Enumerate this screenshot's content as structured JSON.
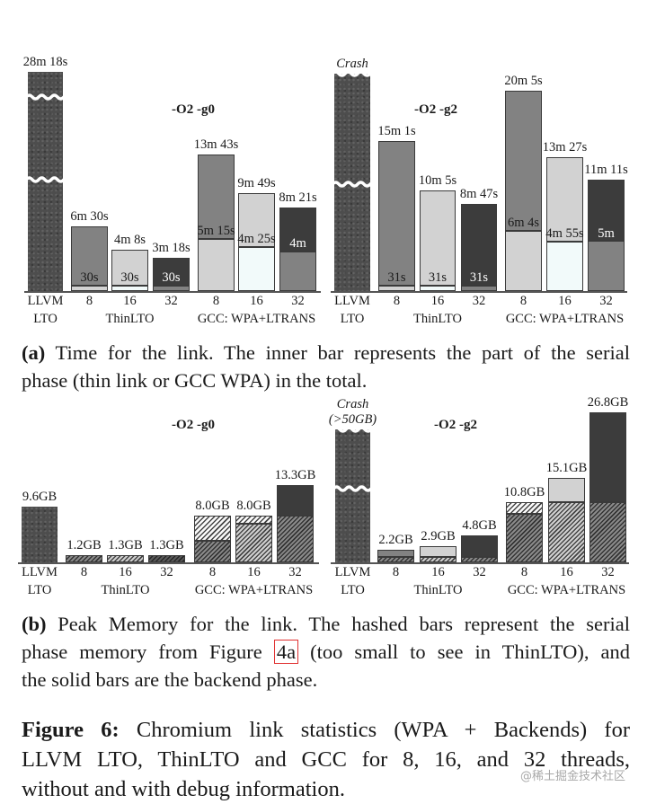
{
  "captions": {
    "a": {
      "tag": "(a)",
      "lines": [
        " Time for the link. The inner bar represents the part of the serial",
        "phase (thin link or GCC WPA) in the total."
      ]
    },
    "b": {
      "tag": "(b)",
      "line1": " Peak Memory for the link. The hashed bars represent the serial",
      "line2_pre": "phase memory from Figure ",
      "line2_ref": "4a",
      "line2_post": " (too small to see in ThinLTO), and",
      "line3": "the solid bars are the backend phase."
    },
    "figure": {
      "tag": "Figure 6:",
      "line1": " Chromium link statistics (WPA + Backends) for",
      "line2": "LLVM LTO, ThinLTO and GCC for 8, 16, and 32 threads,",
      "line3": "without and with debug information."
    }
  },
  "watermark": "@稀土掘金技术社区",
  "colors": {
    "threads_8": "#828282",
    "threads_16": "#d2d2d2",
    "threads_32": "#3c3c3c",
    "llvm": "#4d4d4d",
    "serial_highlight": "#e03030"
  },
  "chart_data": [
    {
      "type": "bar",
      "figure": "a",
      "metric": "link time",
      "unit": "seconds",
      "title": "-O2 -g0",
      "tick_labels": [
        [
          "LLVM",
          "LTO"
        ],
        [
          "8"
        ],
        [
          "16"
        ],
        [
          "32"
        ],
        [
          "8"
        ],
        [
          "16"
        ],
        [
          "32"
        ]
      ],
      "group_labels": [
        "ThinLTO",
        "GCC: WPA+LTRANS"
      ],
      "bars": [
        {
          "category": "LLVM LTO",
          "total": 1698,
          "total_label": "28m 18s",
          "broken": true,
          "segments": [
            {
              "from": 0,
              "to": 1698,
              "style": "s-llvm"
            }
          ]
        },
        {
          "category": "ThinLTO 8",
          "total": 390,
          "total_label": "6m 30s",
          "serial": 30,
          "inner_label": "30s",
          "inner_color": "#1a1a1a",
          "segments": [
            {
              "from": 0,
              "to": 30,
              "style": "s-light"
            },
            {
              "from": 30,
              "to": 390,
              "style": "s-mid"
            }
          ]
        },
        {
          "category": "ThinLTO 16",
          "total": 248,
          "total_label": "4m 8s",
          "serial": 30,
          "inner_label": "30s",
          "inner_color": "#1a1a1a",
          "segments": [
            {
              "from": 0,
              "to": 30,
              "style": "s-white"
            },
            {
              "from": 30,
              "to": 248,
              "style": "s-light"
            }
          ]
        },
        {
          "category": "ThinLTO 32",
          "total": 198,
          "total_label": "3m 18s",
          "serial": 30,
          "inner_label": "30s",
          "inner_color": "#ffffff",
          "segments": [
            {
              "from": 0,
              "to": 30,
              "style": "s-mid"
            },
            {
              "from": 30,
              "to": 198,
              "style": "s-dark"
            }
          ]
        },
        {
          "category": "GCC 8",
          "total": 823,
          "total_label": "13m 43s",
          "serial": 315,
          "inner_label": "5m 15s",
          "inner_color": "#1a1a1a",
          "segments": [
            {
              "from": 0,
              "to": 315,
              "style": "s-light"
            },
            {
              "from": 315,
              "to": 823,
              "style": "s-mid"
            }
          ]
        },
        {
          "category": "GCC 16",
          "total": 589,
          "total_label": "9m 49s",
          "serial": 265,
          "inner_label": "4m 25s",
          "inner_color": "#1a1a1a",
          "segments": [
            {
              "from": 0,
              "to": 265,
              "style": "s-white"
            },
            {
              "from": 265,
              "to": 589,
              "style": "s-light"
            }
          ]
        },
        {
          "category": "GCC 32",
          "total": 501,
          "total_label": "8m 21s",
          "serial": 240,
          "inner_label": "4m",
          "inner_color": "#ffffff",
          "segments": [
            {
              "from": 0,
              "to": 240,
              "style": "s-mid"
            },
            {
              "from": 240,
              "to": 501,
              "style": "s-dark"
            }
          ]
        }
      ]
    },
    {
      "type": "bar",
      "figure": "a",
      "metric": "link time",
      "unit": "seconds",
      "title": "-O2 -g2",
      "tick_labels": [
        [
          "LLVM",
          "LTO"
        ],
        [
          "8"
        ],
        [
          "16"
        ],
        [
          "32"
        ],
        [
          "8"
        ],
        [
          "16"
        ],
        [
          "32"
        ]
      ],
      "group_labels": [
        "ThinLTO",
        "GCC: WPA+LTRANS"
      ],
      "bars": [
        {
          "category": "LLVM LTO",
          "total": null,
          "total_label": "Crash",
          "crash": true,
          "broken": true,
          "segments": [
            {
              "from": 0,
              "to": 1,
              "style": "s-llvm"
            }
          ]
        },
        {
          "category": "ThinLTO 8",
          "total": 901,
          "total_label": "15m 1s",
          "serial": 31,
          "inner_label": "31s",
          "inner_color": "#1a1a1a",
          "segments": [
            {
              "from": 0,
              "to": 31,
              "style": "s-light"
            },
            {
              "from": 31,
              "to": 901,
              "style": "s-mid"
            }
          ]
        },
        {
          "category": "ThinLTO 16",
          "total": 605,
          "total_label": "10m 5s",
          "serial": 31,
          "inner_label": "31s",
          "inner_color": "#1a1a1a",
          "segments": [
            {
              "from": 0,
              "to": 31,
              "style": "s-white"
            },
            {
              "from": 31,
              "to": 605,
              "style": "s-light"
            }
          ]
        },
        {
          "category": "ThinLTO 32",
          "total": 527,
          "total_label": "8m 47s",
          "serial": 31,
          "inner_label": "31s",
          "inner_color": "#ffffff",
          "segments": [
            {
              "from": 0,
              "to": 31,
              "style": "s-mid"
            },
            {
              "from": 31,
              "to": 527,
              "style": "s-dark"
            }
          ]
        },
        {
          "category": "GCC 8",
          "total": 1205,
          "total_label": "20m 5s",
          "serial": 364,
          "inner_label": "6m 4s",
          "inner_color": "#1a1a1a",
          "segments": [
            {
              "from": 0,
              "to": 364,
              "style": "s-light"
            },
            {
              "from": 364,
              "to": 1205,
              "style": "s-mid"
            }
          ]
        },
        {
          "category": "GCC 16",
          "total": 807,
          "total_label": "13m 27s",
          "serial": 295,
          "inner_label": "4m 55s",
          "inner_color": "#1a1a1a",
          "segments": [
            {
              "from": 0,
              "to": 295,
              "style": "s-white"
            },
            {
              "from": 295,
              "to": 807,
              "style": "s-light"
            }
          ]
        },
        {
          "category": "GCC 32",
          "total": 671,
          "total_label": "11m 11s",
          "serial": 300,
          "inner_label": "5m",
          "inner_color": "#ffffff",
          "segments": [
            {
              "from": 0,
              "to": 300,
              "style": "s-mid"
            },
            {
              "from": 300,
              "to": 671,
              "style": "s-dark"
            }
          ]
        }
      ]
    },
    {
      "type": "bar",
      "figure": "b",
      "metric": "peak memory",
      "unit": "GB",
      "title": "-O2 -g0",
      "tick_labels": [
        [
          "LLVM",
          "LTO"
        ],
        [
          "8"
        ],
        [
          "16"
        ],
        [
          "32"
        ],
        [
          "8"
        ],
        [
          "16"
        ],
        [
          "32"
        ]
      ],
      "group_labels": [
        "ThinLTO",
        "GCC: WPA+LTRANS"
      ],
      "bars": [
        {
          "category": "LLVM LTO",
          "total": 9.6,
          "total_label": "9.6GB",
          "segments": [
            {
              "from": 0,
              "to": 9.6,
              "style": "s-llvm"
            }
          ]
        },
        {
          "category": "ThinLTO 8",
          "total": 1.2,
          "total_label": "1.2GB",
          "segments": [
            {
              "from": 0,
              "to": 1.2,
              "style": "h-mid"
            }
          ]
        },
        {
          "category": "ThinLTO 16",
          "total": 1.3,
          "total_label": "1.3GB",
          "segments": [
            {
              "from": 0,
              "to": 1.3,
              "style": "h-light"
            }
          ]
        },
        {
          "category": "ThinLTO 32",
          "total": 1.3,
          "total_label": "1.3GB",
          "segments": [
            {
              "from": 0,
              "to": 1.3,
              "style": "h-dark"
            }
          ]
        },
        {
          "category": "GCC 8",
          "total": 8.0,
          "total_label": "8.0GB",
          "segments": [
            {
              "from": 0,
              "to": 3.7,
              "style": "h-mid"
            },
            {
              "from": 3.7,
              "to": 8.0,
              "style": "h-white"
            }
          ]
        },
        {
          "category": "GCC 16",
          "total": 8.0,
          "total_label": "8.0GB",
          "segments": [
            {
              "from": 0,
              "to": 6.6,
              "style": "h-light"
            },
            {
              "from": 6.6,
              "to": 8.0,
              "style": "h-white"
            }
          ]
        },
        {
          "category": "GCC 32",
          "total": 13.3,
          "total_label": "13.3GB",
          "segments": [
            {
              "from": 0,
              "to": 8.0,
              "style": "h-mid"
            },
            {
              "from": 8.0,
              "to": 13.3,
              "style": "s-dark"
            }
          ]
        }
      ]
    },
    {
      "type": "bar",
      "figure": "b",
      "metric": "peak memory",
      "unit": "GB",
      "title": "-O2 -g2",
      "tick_labels": [
        [
          "LLVM",
          "LTO"
        ],
        [
          "8"
        ],
        [
          "16"
        ],
        [
          "32"
        ],
        [
          "8"
        ],
        [
          "16"
        ],
        [
          "32"
        ]
      ],
      "group_labels": [
        "ThinLTO",
        "GCC: WPA+LTRANS"
      ],
      "bars": [
        {
          "category": "LLVM LTO",
          "total": null,
          "total_label": "Crash",
          "note": "(>50GB)",
          "crash": true,
          "broken": true,
          "segments": [
            {
              "from": 0,
              "to": 1,
              "style": "s-llvm"
            }
          ]
        },
        {
          "category": "ThinLTO 8",
          "total": 2.2,
          "total_label": "2.2GB",
          "segments": [
            {
              "from": 0,
              "to": 1.0,
              "style": "h-mid"
            },
            {
              "from": 1.0,
              "to": 2.2,
              "style": "s-mid"
            }
          ]
        },
        {
          "category": "ThinLTO 16",
          "total": 2.9,
          "total_label": "2.9GB",
          "segments": [
            {
              "from": 0,
              "to": 1.0,
              "style": "h-light"
            },
            {
              "from": 1.0,
              "to": 2.9,
              "style": "s-light"
            }
          ]
        },
        {
          "category": "ThinLTO 32",
          "total": 4.8,
          "total_label": "4.8GB",
          "segments": [
            {
              "from": 0,
              "to": 1.0,
              "style": "h-mid"
            },
            {
              "from": 1.0,
              "to": 4.8,
              "style": "s-dark"
            }
          ]
        },
        {
          "category": "GCC 8",
          "total": 10.8,
          "total_label": "10.8GB",
          "segments": [
            {
              "from": 0,
              "to": 8.7,
              "style": "h-mid"
            },
            {
              "from": 8.7,
              "to": 10.8,
              "style": "h-white"
            }
          ]
        },
        {
          "category": "GCC 16",
          "total": 15.1,
          "total_label": "15.1GB",
          "segments": [
            {
              "from": 0,
              "to": 10.8,
              "style": "h-light"
            },
            {
              "from": 10.8,
              "to": 15.1,
              "style": "s-light"
            }
          ]
        },
        {
          "category": "GCC 32",
          "total": 26.8,
          "total_label": "26.8GB",
          "segments": [
            {
              "from": 0,
              "to": 10.8,
              "style": "h-mid"
            },
            {
              "from": 10.8,
              "to": 26.8,
              "style": "s-dark"
            }
          ]
        }
      ]
    }
  ]
}
